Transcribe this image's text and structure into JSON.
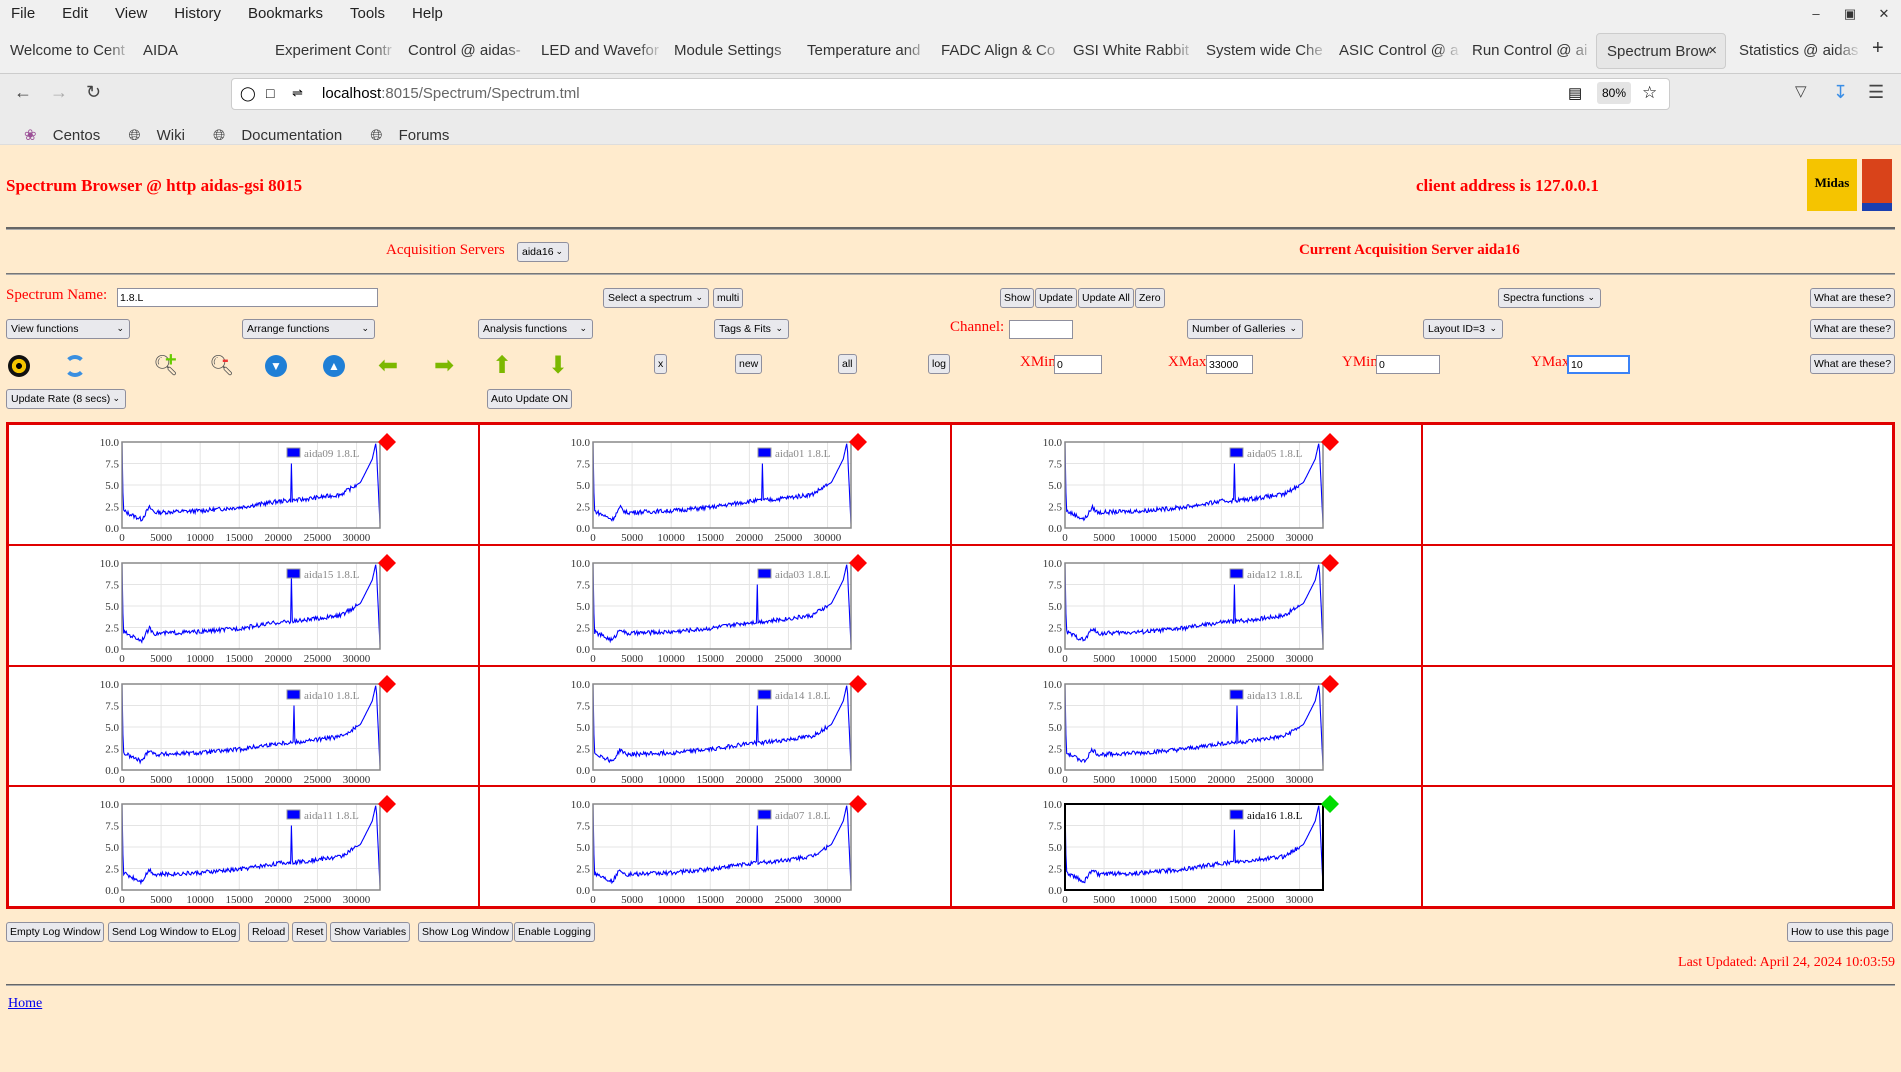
{
  "browser": {
    "menu": [
      "File",
      "Edit",
      "View",
      "History",
      "Bookmarks",
      "Tools",
      "Help"
    ],
    "tabs": [
      {
        "label": "Welcome to Cent"
      },
      {
        "label": "AIDA"
      },
      {
        "label": ""
      },
      {
        "label": "Experiment Contr"
      },
      {
        "label": "Control @ aidas-"
      },
      {
        "label": "LED and Wavefor"
      },
      {
        "label": "Module Settings"
      },
      {
        "label": "Temperature and"
      },
      {
        "label": "FADC Align & Co"
      },
      {
        "label": "GSI White Rabbit"
      },
      {
        "label": "System wide Che"
      },
      {
        "label": "ASIC Control @ a"
      },
      {
        "label": "Run Control @ ai"
      },
      {
        "label": "Spectrum Brow",
        "active": true
      },
      {
        "label": "Statistics @ aidas"
      }
    ],
    "url_host": "localhost",
    "url_rest": ":8015/Spectrum/Spectrum.tml",
    "zoom": "80%",
    "bookmarks": [
      "Centos",
      "Wiki",
      "Documentation",
      "Forums"
    ]
  },
  "header": {
    "title": "Spectrum Browser @ http aidas-gsi 8015",
    "client": "client address is 127.0.0.1",
    "logo_text": "Midas"
  },
  "acq": {
    "label": "Acquisition Servers",
    "server": "aida16",
    "current": "Current Acquisition Server aida16"
  },
  "controls": {
    "spectrum_name_label": "Spectrum Name:",
    "spectrum_name": "1.8.L",
    "select_spectrum": "Select a spectrum",
    "multi": "multi",
    "show": "Show",
    "update": "Update",
    "update_all": "Update All",
    "zero": "Zero",
    "spectra_functions": "Spectra functions",
    "what": "What are these?",
    "view_functions": "View functions",
    "arrange_functions": "Arrange functions",
    "analysis_functions": "Analysis functions",
    "tags_fits": "Tags & Fits",
    "channel_label": "Channel:",
    "channel": "",
    "galleries": "Number of Galleries",
    "layout": "Layout ID=3",
    "x": "x",
    "new": "new",
    "all": "all",
    "log": "log",
    "xmin_label": "XMin",
    "xmin": "0",
    "xmax_label": "XMax",
    "xmax": "33000",
    "ymin_label": "YMin",
    "ymin": "0",
    "ymax_label": "YMax",
    "ymax": "10",
    "update_rate": "Update Rate (8 secs)",
    "auto_update": "Auto Update ON",
    "icons": [
      "radiation-icon",
      "refresh-icon",
      "zoom-in-icon",
      "zoom-out-icon",
      "expand-down-icon",
      "expand-up-icon",
      "arrow-left-icon",
      "arrow-right-icon",
      "arrow-up-icon",
      "arrow-down-icon"
    ]
  },
  "chart_data": {
    "type": "line",
    "xlim": [
      0,
      33000
    ],
    "ylim": [
      0,
      10
    ],
    "x_ticks": [
      "0",
      "5000",
      "10000",
      "15000",
      "20000",
      "25000",
      "30000"
    ],
    "y_ticks": [
      "0.0",
      "2.5",
      "5.0",
      "7.5",
      "10.0"
    ],
    "grid": true,
    "legend_placement": "top-right",
    "profile": [
      [
        0,
        10
      ],
      [
        150,
        2.0
      ],
      [
        1500,
        1.4
      ],
      [
        2500,
        1.0
      ],
      [
        3500,
        2.4
      ],
      [
        4200,
        1.8
      ],
      [
        10000,
        2.0
      ],
      [
        15000,
        2.4
      ],
      [
        20000,
        3.1
      ],
      [
        23000,
        3.3
      ],
      [
        28000,
        3.9
      ],
      [
        30500,
        5.3
      ],
      [
        32000,
        8
      ],
      [
        32500,
        10
      ],
      [
        33000,
        0.5
      ]
    ],
    "spectra": [
      {
        "name": "aida09 1.8.L",
        "peak_x": 21700,
        "peak_y": 7.5,
        "status": "#ff0000"
      },
      {
        "name": "aida01 1.8.L",
        "peak_x": 21700,
        "peak_y": 7.5,
        "status": "#ff0000"
      },
      {
        "name": "aida05 1.8.L",
        "peak_x": 21700,
        "peak_y": 7.5,
        "status": "#ff0000"
      },
      null,
      {
        "name": "aida15 1.8.L",
        "peak_x": 21700,
        "peak_y": 8.5,
        "status": "#ff0000"
      },
      {
        "name": "aida03 1.8.L",
        "peak_x": 21000,
        "peak_y": 7.5,
        "status": "#ff0000"
      },
      {
        "name": "aida12 1.8.L",
        "peak_x": 21700,
        "peak_y": 7.5,
        "status": "#ff0000"
      },
      null,
      {
        "name": "aida10 1.8.L",
        "peak_x": 22000,
        "peak_y": 7.5,
        "status": "#ff0000"
      },
      {
        "name": "aida14 1.8.L",
        "peak_x": 21000,
        "peak_y": 7.5,
        "status": "#ff0000"
      },
      {
        "name": "aida13 1.8.L",
        "peak_x": 22000,
        "peak_y": 7.5,
        "status": "#ff0000"
      },
      null,
      {
        "name": "aida11 1.8.L",
        "peak_x": 21700,
        "peak_y": 7.5,
        "status": "#ff0000"
      },
      {
        "name": "aida07 1.8.L",
        "peak_x": 21000,
        "peak_y": 7.5,
        "status": "#ff0000"
      },
      {
        "name": "aida16 1.8.L",
        "peak_x": 21700,
        "peak_y": 7.0,
        "status": "#00dd00",
        "selected": true
      },
      null
    ],
    "series_color": "#0000ff"
  },
  "footer": {
    "buttons": [
      "Empty Log Window",
      "Send Log Window to ELog",
      "Reload",
      "Reset",
      "Show Variables",
      "Show Log Window",
      "Enable Logging"
    ],
    "howto": "How to use this page",
    "last_updated": "Last Updated: April 24, 2024 10:03:59",
    "home": "Home"
  }
}
